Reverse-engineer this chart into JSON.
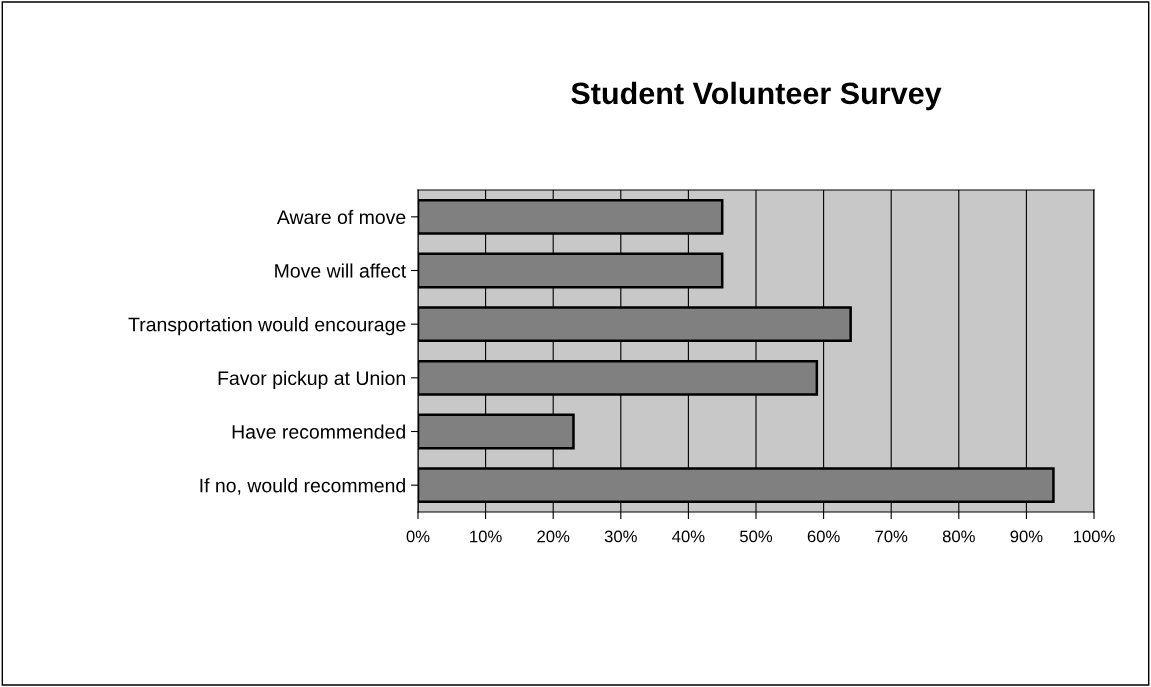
{
  "chart_data": {
    "type": "bar",
    "orientation": "horizontal",
    "title": "Student Volunteer Survey",
    "categories": [
      "Aware of move",
      "Move will affect",
      "Transportation would encourage",
      "Favor pickup at Union",
      "Have recommended",
      "If no, would recommend"
    ],
    "values": [
      45,
      45,
      64,
      59,
      23,
      94
    ],
    "color": "#808080",
    "xlim": [
      0,
      100
    ],
    "xticks": [
      {
        "value": 0,
        "label": "0%"
      },
      {
        "value": 10,
        "label": "10%"
      },
      {
        "value": 20,
        "label": "20%"
      },
      {
        "value": 30,
        "label": "30%"
      },
      {
        "value": 40,
        "label": "40%"
      },
      {
        "value": 50,
        "label": "50%"
      },
      {
        "value": 60,
        "label": "60%"
      },
      {
        "value": 70,
        "label": "70%"
      },
      {
        "value": 80,
        "label": "80%"
      },
      {
        "value": 90,
        "label": "90%"
      },
      {
        "value": 100,
        "label": "100%"
      }
    ],
    "grid": "x"
  }
}
